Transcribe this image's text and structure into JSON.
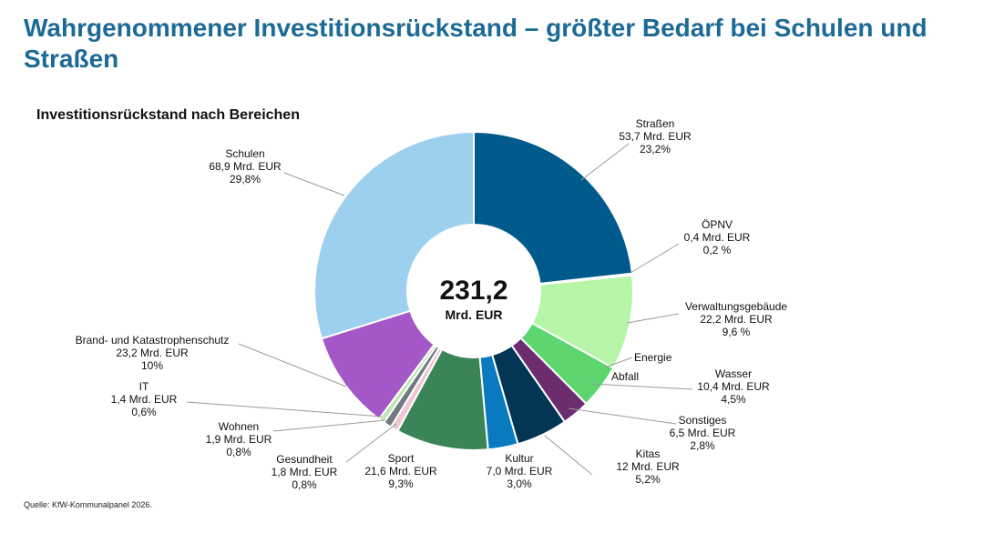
{
  "page": {
    "title": "Wahrgenommener Investitionsrückstand – größter Bedarf bei Schulen und Straßen",
    "source": "Quelle: KfW-Kommunalpanel 2026."
  },
  "chart_data": {
    "type": "pie",
    "title": "Investitionsrückstand nach Bereichen",
    "center_value": "231,2",
    "center_unit": "Mrd. EUR",
    "slices": [
      {
        "key": "strassen",
        "name": "Straßen",
        "value": 53.7,
        "amount_label": "53,7 Mrd. EUR",
        "share_label": "23,2%",
        "color": "#005a8c"
      },
      {
        "key": "oepnv",
        "name": "ÖPNV",
        "value": 0.4,
        "amount_label": "0,4 Mrd. EUR",
        "share_label": "0,2 %",
        "color": "#2e6f4a"
      },
      {
        "key": "verwaltung",
        "name": "Verwaltungsgebäude",
        "value": 22.2,
        "amount_label": "22,2 Mrd. EUR",
        "share_label": "9,6 %",
        "color": "#b7f5a8"
      },
      {
        "key": "energie",
        "name": "Energie",
        "value": 0,
        "amount_label": "",
        "share_label": "",
        "color": "#86e07a"
      },
      {
        "key": "abfall",
        "name": "Abfall",
        "value": 0,
        "amount_label": "",
        "share_label": "",
        "color": "#5fd672"
      },
      {
        "key": "wasser",
        "name": "Wasser",
        "value": 10.4,
        "amount_label": "10,4 Mrd. EUR",
        "share_label": "4,5%",
        "color": "#5dd670"
      },
      {
        "key": "sonstiges",
        "name": "Sonstiges",
        "value": 6.5,
        "amount_label": "6,5 Mrd. EUR",
        "share_label": "2,8%",
        "color": "#6b2d6e"
      },
      {
        "key": "kitas",
        "name": "Kitas",
        "value": 12,
        "amount_label": "12 Mrd. EUR",
        "share_label": "5,2%",
        "color": "#033555"
      },
      {
        "key": "kultur",
        "name": "Kultur",
        "value": 7.0,
        "amount_label": "7,0 Mrd. EUR",
        "share_label": "3,0%",
        "color": "#0a7ac0"
      },
      {
        "key": "sport",
        "name": "Sport",
        "value": 21.6,
        "amount_label": "21,6 Mrd. EUR",
        "share_label": "9,3%",
        "color": "#3a8457"
      },
      {
        "key": "gesundheit",
        "name": "Gesundheit",
        "value": 1.8,
        "amount_label": "1,8 Mrd. EUR",
        "share_label": "0,8%",
        "color": "#f0c6d3"
      },
      {
        "key": "wohnen",
        "name": "Wohnen",
        "value": 1.9,
        "amount_label": "1,9 Mrd. EUR",
        "share_label": "0,8%",
        "color": "#707a80"
      },
      {
        "key": "it",
        "name": "IT",
        "value": 1.4,
        "amount_label": "1,4 Mrd. EUR",
        "share_label": "0,6%",
        "color": "#bde6b0"
      },
      {
        "key": "brand",
        "name": "Brand- und Katastrophenschutz",
        "value": 23.2,
        "amount_label": "23,2 Mrd. EUR",
        "share_label": "10%",
        "color": "#a457c6"
      },
      {
        "key": "schulen",
        "name": "Schulen",
        "value": 68.9,
        "amount_label": "68,9 Mrd. EUR",
        "share_label": "29,8%",
        "color": "#9dd0ee"
      }
    ]
  }
}
